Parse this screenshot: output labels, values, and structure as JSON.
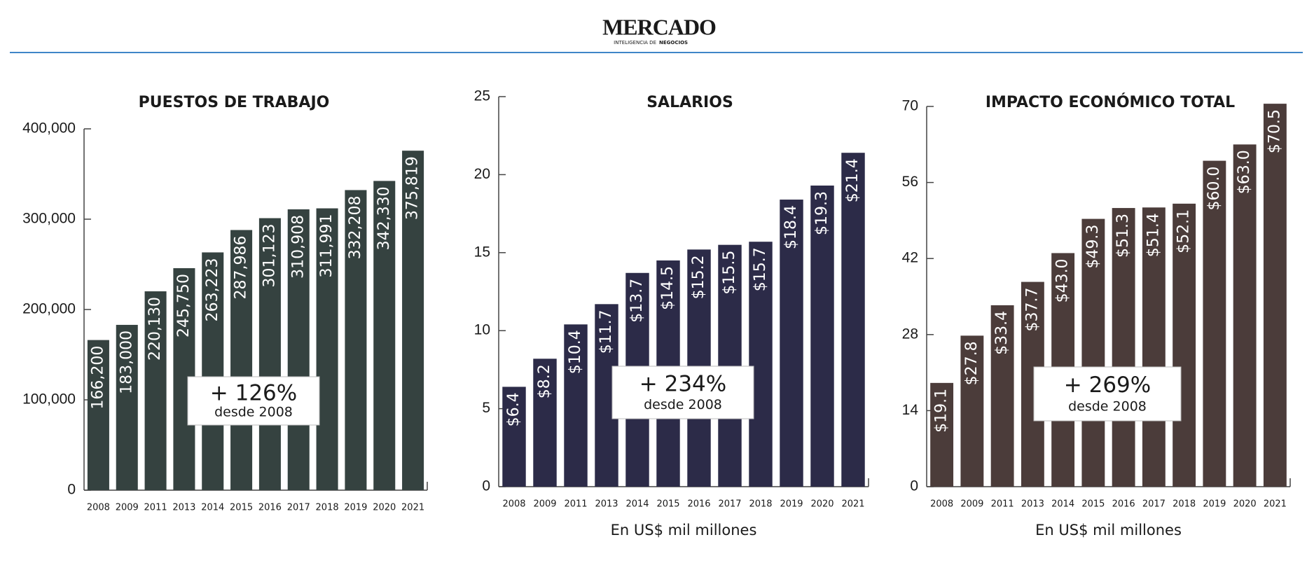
{
  "header": {
    "logo": "MERCADO",
    "tagline": [
      "INTELIGENCIA DE",
      "NEGOCIOS"
    ]
  },
  "chart_data": [
    {
      "type": "bar",
      "title": "PUESTOS DE TRABAJO",
      "color": "#354240",
      "categories": [
        "2008",
        "2009",
        "2011",
        "2013",
        "2014",
        "2015",
        "2016",
        "2017",
        "2018",
        "2019",
        "2020",
        "2021"
      ],
      "values": [
        166200,
        183000,
        220130,
        245750,
        263223,
        287986,
        301123,
        310908,
        311991,
        332208,
        342330,
        375819
      ],
      "value_labels": [
        "166,200",
        "183,000",
        "220,130",
        "245,750",
        "263,223",
        "287,986",
        "301,123",
        "310,908",
        "311,991",
        "332,208",
        "342,330",
        "375,819"
      ],
      "ylim": [
        0,
        400000
      ],
      "yticks": [
        0,
        {
          "value": 100000,
          "label": "100,000"
        },
        {
          "value": 200000,
          "label": "200,000"
        },
        {
          "value": 300000,
          "label": "300,000"
        },
        {
          "value": 400000,
          "label": "400,000"
        }
      ],
      "annotation": {
        "text": "+ 126%",
        "subtext": "desde 2008"
      }
    },
    {
      "type": "bar",
      "title": "SALARIOS",
      "color": "#2c2b48",
      "xlabel": "En US$ mil millones",
      "categories": [
        "2008",
        "2009",
        "2011",
        "2013",
        "2014",
        "2015",
        "2016",
        "2017",
        "2018",
        "2019",
        "2020",
        "2021"
      ],
      "values": [
        6.4,
        8.2,
        10.4,
        11.7,
        13.7,
        14.5,
        15.2,
        15.5,
        15.7,
        18.4,
        19.3,
        21.4
      ],
      "value_labels": [
        "$6.4",
        "$8.2",
        "$10.4",
        "$11.7",
        "$13.7",
        "$14.5",
        "$15.2",
        "$15.5",
        "$15.7",
        "$18.4",
        "$19.3",
        "$21.4"
      ],
      "ylim": [
        0,
        25
      ],
      "yticks": [
        0,
        5,
        10,
        15,
        20,
        25
      ],
      "annotation": {
        "text": "+ 234%",
        "subtext": "desde 2008"
      }
    },
    {
      "type": "bar",
      "title": "IMPACTO ECONÓMICO TOTAL",
      "color": "#4b3c3a",
      "xlabel": "En US$ mil millones",
      "categories": [
        "2008",
        "2009",
        "2011",
        "2013",
        "2014",
        "2015",
        "2016",
        "2017",
        "2018",
        "2019",
        "2020",
        "2021"
      ],
      "values": [
        19.1,
        27.8,
        33.4,
        37.7,
        43.0,
        49.3,
        51.3,
        51.4,
        52.1,
        60.0,
        63.0,
        70.5
      ],
      "value_labels": [
        "$19.1",
        "$27.8",
        "$33.4",
        "$37.7",
        "$43.0",
        "$49.3",
        "$51.3",
        "$51.4",
        "$52.1",
        "$60.0",
        "$63.0",
        "$70.5"
      ],
      "ylim": [
        0,
        70
      ],
      "yticks": [
        0,
        14,
        28,
        42,
        56,
        70
      ],
      "annotation": {
        "text": "+ 269%",
        "subtext": "desde 2008"
      }
    }
  ]
}
